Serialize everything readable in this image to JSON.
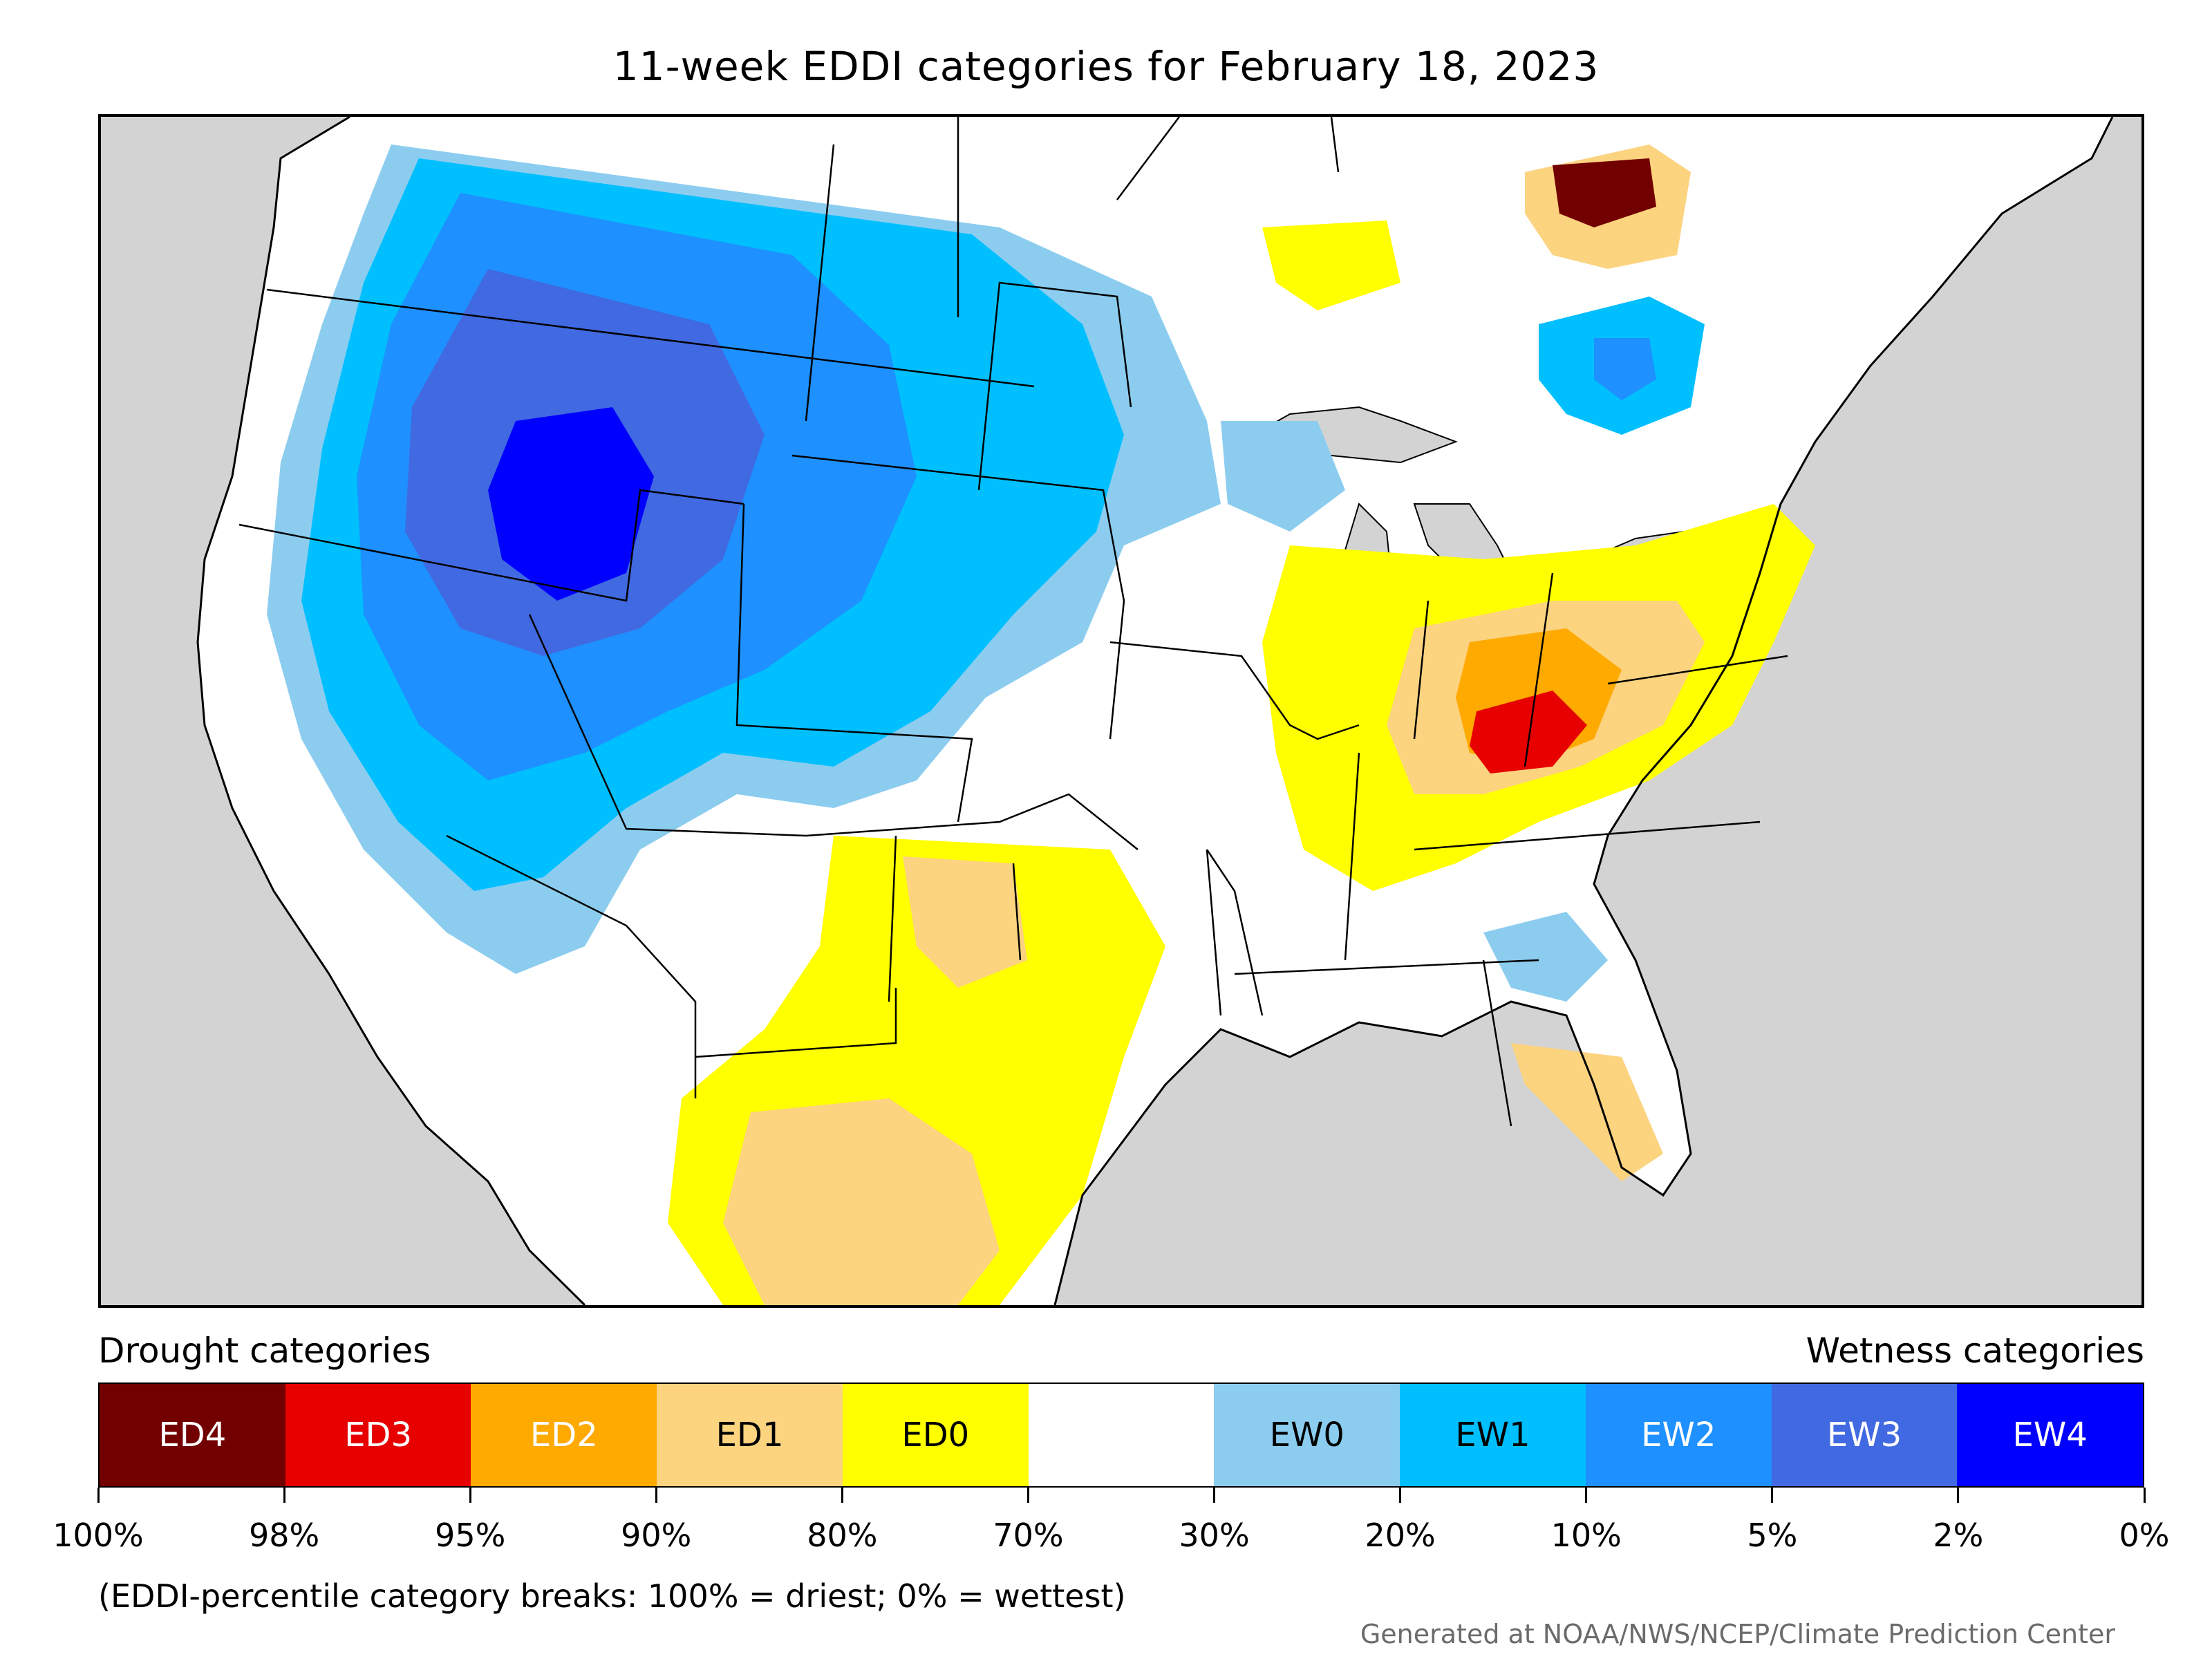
{
  "title": "11-week EDDI categories for February 18, 2023",
  "legend": {
    "left_heading": "Drought categories",
    "right_heading": "Wetness categories",
    "categories": [
      {
        "label": "ED4",
        "color": "#730000",
        "text_color": "#ffffff"
      },
      {
        "label": "ED3",
        "color": "#e60000",
        "text_color": "#ffffff"
      },
      {
        "label": "ED2",
        "color": "#ffaa00",
        "text_color": "#ffffff"
      },
      {
        "label": "ED1",
        "color": "#fcd37f",
        "text_color": "#000000"
      },
      {
        "label": "ED0",
        "color": "#ffff00",
        "text_color": "#000000"
      },
      {
        "label": "",
        "color": "#ffffff",
        "text_color": "#000000"
      },
      {
        "label": "EW0",
        "color": "#8ccdef",
        "text_color": "#000000"
      },
      {
        "label": "EW1",
        "color": "#00bfff",
        "text_color": "#000000"
      },
      {
        "label": "EW2",
        "color": "#1e90ff",
        "text_color": "#ffffff"
      },
      {
        "label": "EW3",
        "color": "#4169e1",
        "text_color": "#ffffff"
      },
      {
        "label": "EW4",
        "color": "#0000ff",
        "text_color": "#ffffff"
      }
    ],
    "tick_labels": [
      "100%",
      "98%",
      "95%",
      "90%",
      "80%",
      "70%",
      "30%",
      "20%",
      "10%",
      "5%",
      "2%",
      "0%"
    ]
  },
  "note": "(EDDI-percentile category breaks: 100% = driest; 0% = wettest)",
  "credit": "Generated at NOAA/NWS/NCEP/Climate Prediction Center"
}
